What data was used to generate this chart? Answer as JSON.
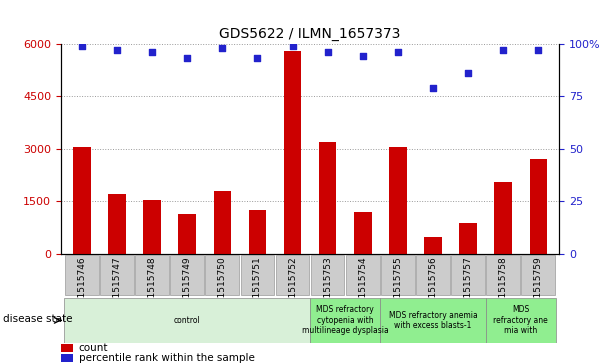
{
  "title": "GDS5622 / ILMN_1657373",
  "samples": [
    "GSM1515746",
    "GSM1515747",
    "GSM1515748",
    "GSM1515749",
    "GSM1515750",
    "GSM1515751",
    "GSM1515752",
    "GSM1515753",
    "GSM1515754",
    "GSM1515755",
    "GSM1515756",
    "GSM1515757",
    "GSM1515758",
    "GSM1515759"
  ],
  "counts": [
    3050,
    1700,
    1550,
    1150,
    1800,
    1250,
    5800,
    3200,
    1200,
    3050,
    500,
    900,
    2050,
    2700
  ],
  "percentiles": [
    99,
    97,
    96,
    93,
    98,
    93,
    99,
    96,
    94,
    96,
    79,
    86,
    97,
    97
  ],
  "ylim_left": [
    0,
    6000
  ],
  "ylim_right": [
    0,
    100
  ],
  "yticks_left": [
    0,
    1500,
    3000,
    4500,
    6000
  ],
  "yticks_right": [
    0,
    25,
    50,
    75,
    100
  ],
  "disease_groups": [
    {
      "label": "control",
      "start": 0,
      "end": 7,
      "color": "#d8f0d8"
    },
    {
      "label": "MDS refractory\ncytopenia with\nmultilineage dysplasia",
      "start": 7,
      "end": 9,
      "color": "#90ee90"
    },
    {
      "label": "MDS refractory anemia\nwith excess blasts-1",
      "start": 9,
      "end": 12,
      "color": "#90ee90"
    },
    {
      "label": "MDS\nrefractory ane\nmia with",
      "start": 12,
      "end": 14,
      "color": "#90ee90"
    }
  ],
  "bar_color": "#cc0000",
  "dot_color": "#2222cc",
  "bar_width": 0.5,
  "tick_label_color_left": "#cc0000",
  "tick_label_color_right": "#2222cc",
  "background_color": "#ffffff",
  "grid_color": "#999999",
  "label_box_color": "#cccccc",
  "label_box_edge": "#999999"
}
